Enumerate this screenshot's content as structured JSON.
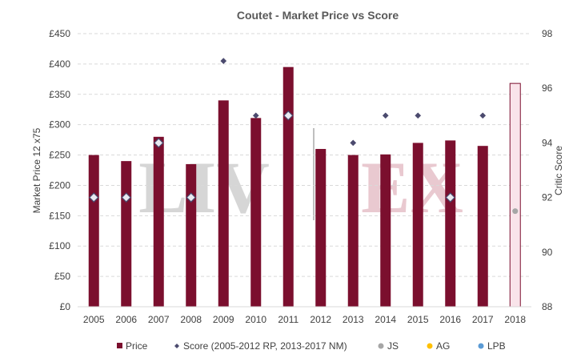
{
  "chart_data": {
    "type": "bar",
    "title": "Coutet - Market Price vs Score",
    "categories": [
      "2005",
      "2006",
      "2007",
      "2008",
      "2009",
      "2010",
      "2011",
      "2012",
      "2013",
      "2014",
      "2015",
      "2016",
      "2017",
      "2018"
    ],
    "ylabel": "Market Price 12 x75",
    "y2label": "Critic Score",
    "ylim": [
      0,
      450
    ],
    "y2lim": [
      88,
      98
    ],
    "yticks": [
      "£0",
      "£50",
      "£100",
      "£150",
      "£200",
      "£250",
      "£300",
      "£350",
      "£400",
      "£450"
    ],
    "y2ticks": [
      "88",
      "90",
      "92",
      "94",
      "96",
      "98"
    ],
    "grid": true,
    "legend_position": "bottom",
    "watermark": "LIV|EX",
    "colors": {
      "price": "#7B0F2E",
      "price_2018": "#F9E4EA",
      "price_2018_border": "#7B0F2E",
      "score": "#4B4A6E",
      "js": "#A6A6A6",
      "ag": "#FFC000",
      "lpb": "#5B9BD5",
      "grid": "#D9D9D9"
    },
    "series": [
      {
        "name": "Price",
        "axis": "left",
        "kind": "bar",
        "values": [
          250,
          240,
          280,
          235,
          340,
          311,
          395,
          260,
          250,
          251,
          270,
          274,
          265,
          368
        ]
      },
      {
        "name": "Score (2005-2012 RP, 2013-2017 NM)",
        "axis": "right",
        "kind": "marker",
        "values": [
          92,
          92,
          94,
          92,
          97,
          95,
          95,
          null,
          94,
          95,
          95,
          92,
          95,
          null
        ],
        "hollow": [
          true,
          true,
          true,
          true,
          false,
          false,
          true,
          null,
          false,
          false,
          false,
          true,
          false,
          null
        ]
      },
      {
        "name": "JS",
        "axis": "right",
        "kind": "dot",
        "values": [
          null,
          null,
          null,
          null,
          null,
          null,
          null,
          null,
          null,
          null,
          null,
          null,
          null,
          91.5
        ]
      },
      {
        "name": "AG",
        "axis": "right",
        "kind": "dot",
        "values": [
          null,
          null,
          null,
          null,
          null,
          null,
          null,
          null,
          null,
          null,
          null,
          null,
          null,
          null
        ]
      },
      {
        "name": "LPB",
        "axis": "right",
        "kind": "dot",
        "values": [
          null,
          null,
          null,
          null,
          null,
          null,
          null,
          null,
          null,
          null,
          null,
          null,
          null,
          null
        ]
      }
    ]
  }
}
